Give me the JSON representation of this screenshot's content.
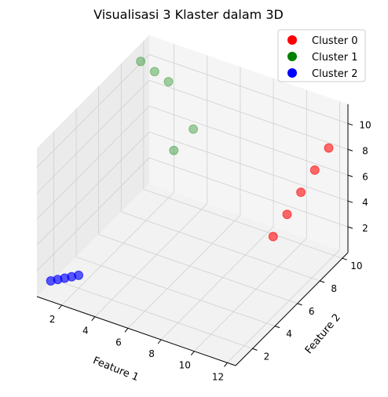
{
  "chart_data": {
    "type": "scatter",
    "projection": "3d",
    "title": "Visualisasi 3 Klaster dalam 3D",
    "xlabel": "Feature 1",
    "ylabel": "Feature 2",
    "zlabel": "",
    "xticks": [
      "2",
      "4",
      "6",
      "8",
      "10",
      "12"
    ],
    "yticks": [
      "2",
      "4",
      "6",
      "8",
      "10"
    ],
    "zticks": [
      "2",
      "4",
      "6",
      "8",
      "10"
    ],
    "grid": true,
    "legend_position": "top-right",
    "series": [
      {
        "name": "Cluster 0",
        "color": "#ff0000",
        "points": [
          {
            "x": 9.0,
            "y": 9.0,
            "z": 1.0
          },
          {
            "x": 9.5,
            "y": 9.5,
            "z": 2.5
          },
          {
            "x": 10.0,
            "y": 10.0,
            "z": 4.0
          },
          {
            "x": 10.5,
            "y": 10.5,
            "z": 5.5
          },
          {
            "x": 11.0,
            "y": 11.0,
            "z": 7.0
          }
        ]
      },
      {
        "name": "Cluster 1",
        "color": "#008000",
        "points": [
          {
            "x": 1.0,
            "y": 9.0,
            "z": 11.0
          },
          {
            "x": 1.5,
            "y": 9.5,
            "z": 10.0
          },
          {
            "x": 2.0,
            "y": 10.0,
            "z": 9.0
          },
          {
            "x": 3.0,
            "y": 9.0,
            "z": 5.0
          },
          {
            "x": 3.5,
            "y": 10.0,
            "z": 6.0
          }
        ]
      },
      {
        "name": "Cluster 2",
        "color": "#0000ff",
        "points": [
          {
            "x": 1.0,
            "y": 1.0,
            "z": 1.0
          },
          {
            "x": 1.25,
            "y": 1.25,
            "z": 1.0
          },
          {
            "x": 1.5,
            "y": 1.5,
            "z": 1.0
          },
          {
            "x": 1.75,
            "y": 1.75,
            "z": 1.0
          },
          {
            "x": 2.0,
            "y": 2.0,
            "z": 1.0
          }
        ]
      }
    ]
  }
}
